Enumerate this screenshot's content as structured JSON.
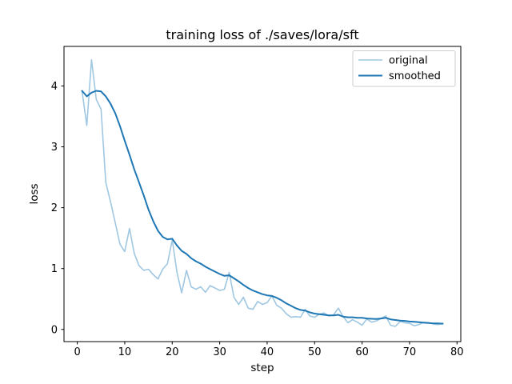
{
  "figure": {
    "background": "#ffffff",
    "title": "training loss of ./saves/lora/sft"
  },
  "chart_data": {
    "type": "line",
    "title": "training loss of ./saves/lora/sft",
    "xlabel": "step",
    "ylabel": "loss",
    "xlim": [
      -2.8,
      80.8
    ],
    "ylim": [
      -0.2,
      4.65
    ],
    "xticks": [
      0,
      10,
      20,
      30,
      40,
      50,
      60,
      70,
      80
    ],
    "yticks": [
      0,
      1,
      2,
      3,
      4
    ],
    "grid": false,
    "legend_position": "upper right",
    "spine_color": "#000000",
    "x": [
      1,
      2,
      3,
      4,
      5,
      6,
      7,
      8,
      9,
      10,
      11,
      12,
      13,
      14,
      15,
      16,
      17,
      18,
      19,
      20,
      21,
      22,
      23,
      24,
      25,
      26,
      27,
      28,
      29,
      30,
      31,
      32,
      33,
      34,
      35,
      36,
      37,
      38,
      39,
      40,
      41,
      42,
      43,
      44,
      45,
      46,
      47,
      48,
      49,
      50,
      51,
      52,
      53,
      54,
      55,
      56,
      57,
      58,
      59,
      60,
      61,
      62,
      63,
      64,
      65,
      66,
      67,
      68,
      69,
      70,
      71,
      72,
      73,
      74,
      75,
      76,
      77
    ],
    "series": [
      {
        "name": "original",
        "color": "#9fc7e2",
        "linewidth": 1.6,
        "values": [
          3.92,
          3.35,
          4.43,
          3.78,
          3.62,
          2.42,
          2.1,
          1.75,
          1.4,
          1.28,
          1.66,
          1.25,
          1.05,
          0.97,
          0.99,
          0.9,
          0.83,
          0.99,
          1.08,
          1.47,
          0.94,
          0.6,
          0.97,
          0.7,
          0.66,
          0.7,
          0.61,
          0.72,
          0.68,
          0.64,
          0.66,
          0.94,
          0.53,
          0.41,
          0.53,
          0.35,
          0.33,
          0.46,
          0.41,
          0.44,
          0.55,
          0.4,
          0.35,
          0.26,
          0.2,
          0.21,
          0.2,
          0.33,
          0.22,
          0.2,
          0.25,
          0.27,
          0.22,
          0.24,
          0.35,
          0.21,
          0.11,
          0.16,
          0.12,
          0.07,
          0.17,
          0.12,
          0.14,
          0.18,
          0.22,
          0.07,
          0.05,
          0.13,
          0.11,
          0.1,
          0.06,
          0.08,
          0.12,
          0.11,
          0.09,
          0.08,
          0.1
        ]
      },
      {
        "name": "smoothed",
        "color": "#1f77b4",
        "linewidth": 2.0,
        "values": [
          3.92,
          3.83,
          3.89,
          3.92,
          3.91,
          3.83,
          3.71,
          3.55,
          3.34,
          3.1,
          2.87,
          2.63,
          2.42,
          2.2,
          1.97,
          1.78,
          1.62,
          1.52,
          1.48,
          1.49,
          1.38,
          1.29,
          1.24,
          1.17,
          1.12,
          1.08,
          1.03,
          0.99,
          0.95,
          0.91,
          0.88,
          0.89,
          0.84,
          0.79,
          0.73,
          0.68,
          0.64,
          0.61,
          0.58,
          0.56,
          0.55,
          0.52,
          0.48,
          0.43,
          0.39,
          0.35,
          0.32,
          0.31,
          0.28,
          0.26,
          0.25,
          0.24,
          0.23,
          0.23,
          0.24,
          0.21,
          0.2,
          0.2,
          0.19,
          0.19,
          0.18,
          0.175,
          0.17,
          0.18,
          0.19,
          0.165,
          0.155,
          0.145,
          0.14,
          0.13,
          0.125,
          0.12,
          0.11,
          0.105,
          0.1,
          0.1,
          0.095
        ]
      }
    ]
  }
}
